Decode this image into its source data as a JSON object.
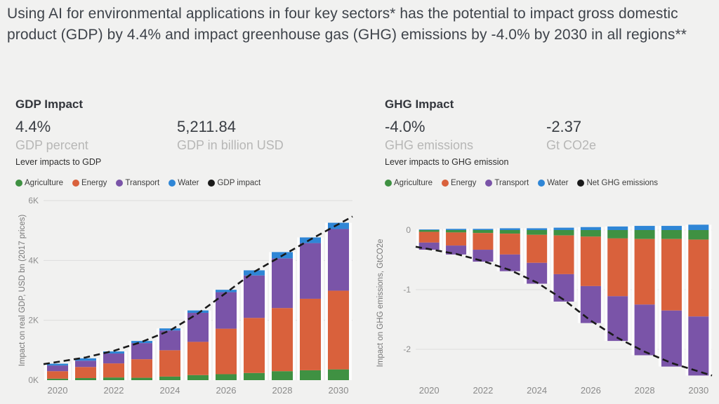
{
  "page": {
    "title": "Using AI for environmental applications in four key sectors* has the potential to impact gross domestic product (GDP) by 4.4% and impact greenhouse gas (GHG) emissions by -4.0% by 2030 in all regions**"
  },
  "colors": {
    "background": "#f1f1f0",
    "agriculture": "#3f9142",
    "energy": "#d9613c",
    "transport": "#7a54a8",
    "water": "#2f86d6",
    "trend_line": "#1a1a1a",
    "grid": "#dddddd"
  },
  "panels": {
    "gdp": {
      "title": "GDP Impact",
      "kpis": [
        {
          "value": "4.4%",
          "label": "GDP percent"
        },
        {
          "value": "5,211.84",
          "label": "GDP in billion USD"
        }
      ],
      "caption": "Lever impacts to GDP",
      "legend": [
        {
          "label": "Agriculture",
          "color": "#3f9142"
        },
        {
          "label": "Energy",
          "color": "#d9613c"
        },
        {
          "label": "Transport",
          "color": "#7a54a8"
        },
        {
          "label": "Water",
          "color": "#2f86d6"
        },
        {
          "label": "GDP impact",
          "color": "#1a1a1a"
        }
      ]
    },
    "ghg": {
      "title": "GHG Impact",
      "kpis": [
        {
          "value": "-4.0%",
          "label": "GHG emissions"
        },
        {
          "value": "-2.37",
          "label": "Gt CO2e"
        }
      ],
      "caption": "Lever impacts to GHG emission",
      "legend": [
        {
          "label": "Agriculture",
          "color": "#3f9142"
        },
        {
          "label": "Energy",
          "color": "#d9613c"
        },
        {
          "label": "Transport",
          "color": "#7a54a8"
        },
        {
          "label": "Water",
          "color": "#2f86d6"
        },
        {
          "label": "Net GHG emissions",
          "color": "#1a1a1a"
        }
      ]
    }
  },
  "chart_data": [
    {
      "type": "bar",
      "stacked": true,
      "title": "Lever impacts to GDP",
      "ylabel": "Impact on real GDP, USD bn (2017 prices)",
      "x": [
        2020,
        2021,
        2022,
        2023,
        2024,
        2025,
        2026,
        2027,
        2028,
        2029,
        2030
      ],
      "xticks": [
        2020,
        2022,
        2024,
        2026,
        2028,
        2030
      ],
      "yticks": [
        {
          "label": "0K",
          "value": 0
        },
        {
          "label": "2K",
          "value": 2000
        },
        {
          "label": "4K",
          "value": 4000
        },
        {
          "label": "6K",
          "value": 6000
        }
      ],
      "ylim": [
        0,
        6000
      ],
      "legend_position": "top",
      "grid": true,
      "series": [
        {
          "name": "Agriculture",
          "color": "#3f9142",
          "values": [
            50,
            70,
            90,
            80,
            120,
            170,
            200,
            240,
            300,
            330,
            360
          ]
        },
        {
          "name": "Energy",
          "color": "#d9613c",
          "values": [
            250,
            370,
            470,
            620,
            880,
            1110,
            1520,
            1840,
            2110,
            2390,
            2630
          ]
        },
        {
          "name": "Transport",
          "color": "#7a54a8",
          "values": [
            190,
            210,
            330,
            540,
            660,
            970,
            1220,
            1420,
            1660,
            1860,
            2060
          ]
        },
        {
          "name": "Water",
          "color": "#2f86d6",
          "values": [
            60,
            80,
            70,
            70,
            70,
            80,
            80,
            170,
            210,
            190,
            210
          ]
        }
      ],
      "line": {
        "name": "GDP impact",
        "color": "#1a1a1a",
        "style": "dashed",
        "values": [
          610,
          760,
          980,
          1280,
          1660,
          2230,
          2920,
          3620,
          4160,
          4700,
          5212
        ]
      }
    },
    {
      "type": "bar",
      "stacked": true,
      "title": "Lever impacts to GHG emission",
      "ylabel": "Impact on GHG emissions, GtCO2e",
      "x": [
        2020,
        2021,
        2022,
        2023,
        2024,
        2025,
        2026,
        2027,
        2028,
        2029,
        2030
      ],
      "xticks": [
        2020,
        2022,
        2024,
        2026,
        2028,
        2030
      ],
      "yticks": [
        {
          "label": "0",
          "value": 0
        },
        {
          "label": "-1",
          "value": -1
        },
        {
          "label": "-2",
          "value": -2
        }
      ],
      "ylim": [
        -2.6,
        0.2
      ],
      "legend_position": "top",
      "grid": true,
      "series": [
        {
          "name": "Water",
          "color": "#2f86d6",
          "values": [
            0.01,
            0.02,
            0.02,
            0.03,
            0.03,
            0.04,
            0.05,
            0.06,
            0.07,
            0.07,
            0.09
          ]
        },
        {
          "name": "Agriculture",
          "color": "#3f9142",
          "values": [
            -0.03,
            -0.04,
            -0.05,
            -0.06,
            -0.08,
            -0.09,
            -0.11,
            -0.14,
            -0.15,
            -0.15,
            -0.16
          ]
        },
        {
          "name": "Energy",
          "color": "#d9613c",
          "values": [
            -0.18,
            -0.22,
            -0.28,
            -0.35,
            -0.47,
            -0.65,
            -0.83,
            -0.97,
            -1.1,
            -1.2,
            -1.29
          ]
        },
        {
          "name": "Transport",
          "color": "#7a54a8",
          "values": [
            -0.12,
            -0.15,
            -0.2,
            -0.28,
            -0.35,
            -0.46,
            -0.62,
            -0.75,
            -0.85,
            -0.94,
            -0.99
          ]
        }
      ],
      "line": {
        "name": "Net GHG emissions",
        "color": "#1a1a1a",
        "style": "dashed",
        "values": [
          -0.32,
          -0.4,
          -0.52,
          -0.67,
          -0.88,
          -1.17,
          -1.52,
          -1.81,
          -2.04,
          -2.23,
          -2.37
        ]
      }
    }
  ]
}
